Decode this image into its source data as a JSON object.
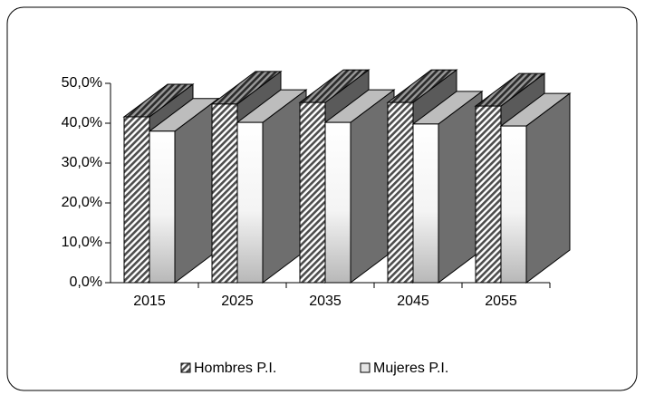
{
  "chart_data": {
    "type": "bar3d",
    "categories": [
      "2015",
      "2025",
      "2035",
      "2045",
      "2055"
    ],
    "series": [
      {
        "name": "Hombres P.I.",
        "color": "#4d4d4d",
        "values": [
          41.6,
          44.8,
          45.2,
          45.2,
          44.3
        ]
      },
      {
        "name": "Mujeres P.I.",
        "color": "#c8c8c8",
        "values": [
          38.0,
          40.2,
          40.2,
          39.8,
          39.3
        ]
      }
    ],
    "ylim": [
      0,
      50
    ],
    "yticks": [
      {
        "value": 0,
        "label": "0,0%"
      },
      {
        "value": 10,
        "label": "10,0%"
      },
      {
        "value": 20,
        "label": "20,0%"
      },
      {
        "value": 30,
        "label": "30,0%"
      },
      {
        "value": 40,
        "label": "40,0%"
      },
      {
        "value": 50,
        "label": "50,0%"
      }
    ],
    "legend": "bottom"
  }
}
